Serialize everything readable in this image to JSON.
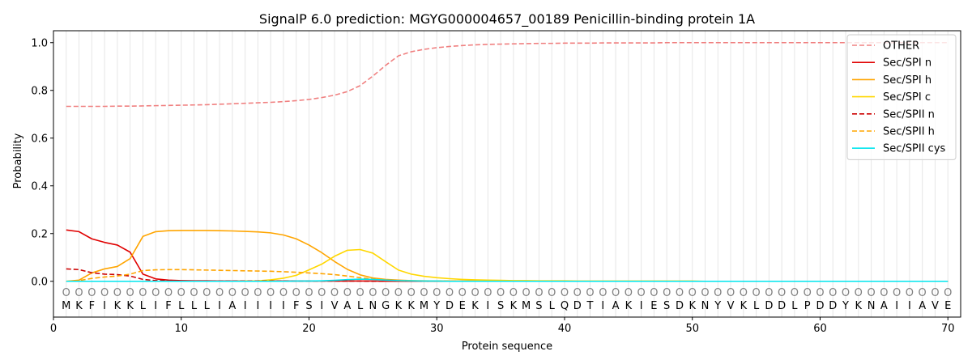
{
  "chart_data": {
    "type": "line",
    "title": "SignalP 6.0 prediction: MGYG000004657_00189 Penicillin-binding protein 1A",
    "xlabel": "Protein sequence",
    "ylabel": "Probability",
    "xlim": [
      0,
      71
    ],
    "ylim": [
      -0.15,
      1.05
    ],
    "xticks": [
      0,
      10,
      20,
      30,
      40,
      50,
      60,
      70
    ],
    "yticks": [
      0.0,
      0.2,
      0.4,
      0.6,
      0.8,
      1.0
    ],
    "grid": "vertical lines at each residue",
    "legend_position": "top-right",
    "sequence": [
      "M",
      "K",
      "F",
      "I",
      "K",
      "K",
      "L",
      "I",
      "F",
      "L",
      "L",
      "L",
      "I",
      "A",
      "I",
      "I",
      "I",
      "I",
      "F",
      "S",
      "I",
      "V",
      "A",
      "L",
      "N",
      "G",
      "K",
      "K",
      "M",
      "Y",
      "D",
      "E",
      "K",
      "I",
      "S",
      "K",
      "M",
      "S",
      "L",
      "Q",
      "D",
      "T",
      "I",
      "A",
      "K",
      "I",
      "E",
      "S",
      "D",
      "K",
      "N",
      "Y",
      "V",
      "K",
      "L",
      "D",
      "D",
      "L",
      "P",
      "D",
      "D",
      "Y",
      "K",
      "N",
      "A",
      "I",
      "I",
      "A",
      "V",
      "E"
    ],
    "sequence_marker": "O",
    "x": [
      1,
      2,
      3,
      4,
      5,
      6,
      7,
      8,
      9,
      10,
      11,
      12,
      13,
      14,
      15,
      16,
      17,
      18,
      19,
      20,
      21,
      22,
      23,
      24,
      25,
      26,
      27,
      28,
      29,
      30,
      31,
      32,
      33,
      34,
      35,
      36,
      37,
      38,
      39,
      40,
      41,
      42,
      43,
      44,
      45,
      46,
      47,
      48,
      49,
      50,
      51,
      52,
      53,
      54,
      55,
      56,
      57,
      58,
      59,
      60,
      61,
      62,
      63,
      64,
      65,
      66,
      67,
      68,
      69,
      70
    ],
    "series": [
      {
        "name": "OTHER",
        "color": "#f08080",
        "dash": "dashed",
        "values": [
          0.733,
          0.733,
          0.733,
          0.733,
          0.734,
          0.734,
          0.735,
          0.736,
          0.737,
          0.738,
          0.739,
          0.74,
          0.742,
          0.744,
          0.746,
          0.748,
          0.75,
          0.753,
          0.757,
          0.762,
          0.77,
          0.78,
          0.795,
          0.82,
          0.86,
          0.905,
          0.945,
          0.962,
          0.972,
          0.979,
          0.984,
          0.988,
          0.991,
          0.993,
          0.994,
          0.995,
          0.996,
          0.997,
          0.997,
          0.998,
          0.998,
          0.998,
          0.999,
          0.999,
          0.999,
          0.999,
          0.999,
          1.0,
          1.0,
          1.0,
          1.0,
          1.0,
          1.0,
          1.0,
          1.0,
          1.0,
          1.0,
          1.0,
          1.0,
          1.0,
          1.0,
          1.0,
          1.0,
          1.0,
          1.0,
          1.0,
          1.0,
          1.0,
          1.0,
          1.0
        ]
      },
      {
        "name": "Sec/SPI n",
        "color": "#e00000",
        "dash": "solid",
        "values": [
          0.215,
          0.208,
          0.178,
          0.163,
          0.152,
          0.122,
          0.03,
          0.01,
          0.005,
          0.003,
          0.002,
          0.002,
          0.001,
          0.001,
          0.001,
          0.001,
          0.001,
          0.001,
          0.001,
          0.001,
          0.001,
          0.001,
          0.001,
          0.001,
          0.001,
          0.0,
          0.0,
          0.0,
          0.0,
          0.0,
          0.0,
          0.0,
          0.0,
          0.0,
          0.0,
          0.0,
          0.0,
          0.0,
          0.0,
          0.0,
          0.0,
          0.0,
          0.0,
          0.0,
          0.0,
          0.0,
          0.0,
          0.0,
          0.0,
          0.0,
          0.0,
          0.0,
          0.0,
          0.0,
          0.0,
          0.0,
          0.0,
          0.0,
          0.0,
          0.0,
          0.0,
          0.0,
          0.0,
          0.0,
          0.0,
          0.0,
          0.0,
          0.0,
          0.0,
          0.0
        ]
      },
      {
        "name": "Sec/SPI h",
        "color": "#ffa500",
        "dash": "solid",
        "values": [
          0.0,
          0.005,
          0.035,
          0.052,
          0.062,
          0.095,
          0.188,
          0.208,
          0.212,
          0.213,
          0.213,
          0.213,
          0.212,
          0.211,
          0.209,
          0.207,
          0.203,
          0.194,
          0.178,
          0.152,
          0.12,
          0.083,
          0.05,
          0.027,
          0.014,
          0.008,
          0.005,
          0.003,
          0.002,
          0.001,
          0.001,
          0.001,
          0.001,
          0.0,
          0.0,
          0.0,
          0.0,
          0.0,
          0.0,
          0.0,
          0.0,
          0.0,
          0.0,
          0.0,
          0.0,
          0.0,
          0.0,
          0.0,
          0.0,
          0.0,
          0.0,
          0.0,
          0.0,
          0.0,
          0.0,
          0.0,
          0.0,
          0.0,
          0.0,
          0.0,
          0.0,
          0.0,
          0.0,
          0.0,
          0.0,
          0.0,
          0.0,
          0.0,
          0.0,
          0.0
        ]
      },
      {
        "name": "Sec/SPI c",
        "color": "#ffd700",
        "dash": "solid",
        "values": [
          0.0,
          0.0,
          0.0,
          0.0,
          0.0,
          0.0,
          0.0,
          0.0,
          0.0,
          0.0,
          0.0,
          0.0,
          0.0,
          0.0,
          0.001,
          0.002,
          0.006,
          0.013,
          0.025,
          0.048,
          0.072,
          0.105,
          0.13,
          0.133,
          0.118,
          0.082,
          0.047,
          0.03,
          0.021,
          0.015,
          0.011,
          0.008,
          0.006,
          0.005,
          0.004,
          0.003,
          0.003,
          0.002,
          0.002,
          0.002,
          0.001,
          0.001,
          0.001,
          0.001,
          0.001,
          0.001,
          0.001,
          0.001,
          0.001,
          0.001,
          0.0,
          0.0,
          0.0,
          0.0,
          0.0,
          0.0,
          0.0,
          0.0,
          0.0,
          0.0,
          0.0,
          0.0,
          0.0,
          0.0,
          0.0,
          0.0,
          0.0,
          0.0,
          0.0,
          0.0
        ]
      },
      {
        "name": "Sec/SPII n",
        "color": "#cc0000",
        "dash": "dashed",
        "values": [
          0.052,
          0.049,
          0.036,
          0.03,
          0.028,
          0.022,
          0.008,
          0.003,
          0.002,
          0.001,
          0.001,
          0.001,
          0.001,
          0.001,
          0.001,
          0.001,
          0.001,
          0.001,
          0.001,
          0.001,
          0.001,
          0.001,
          0.001,
          0.001,
          0.0,
          0.0,
          0.0,
          0.0,
          0.0,
          0.0,
          0.0,
          0.0,
          0.0,
          0.0,
          0.0,
          0.0,
          0.0,
          0.0,
          0.0,
          0.0,
          0.0,
          0.0,
          0.0,
          0.0,
          0.0,
          0.0,
          0.0,
          0.0,
          0.0,
          0.0,
          0.0,
          0.0,
          0.0,
          0.0,
          0.0,
          0.0,
          0.0,
          0.0,
          0.0,
          0.0,
          0.0,
          0.0,
          0.0,
          0.0,
          0.0,
          0.0,
          0.0,
          0.0,
          0.0,
          0.0
        ]
      },
      {
        "name": "Sec/SPII h",
        "color": "#ffa500",
        "dash": "dashed",
        "values": [
          0.0,
          0.003,
          0.012,
          0.018,
          0.022,
          0.03,
          0.045,
          0.048,
          0.049,
          0.049,
          0.048,
          0.047,
          0.046,
          0.045,
          0.044,
          0.043,
          0.042,
          0.04,
          0.038,
          0.035,
          0.032,
          0.028,
          0.022,
          0.015,
          0.009,
          0.005,
          0.003,
          0.002,
          0.001,
          0.001,
          0.001,
          0.0,
          0.0,
          0.0,
          0.0,
          0.0,
          0.0,
          0.0,
          0.0,
          0.0,
          0.0,
          0.0,
          0.0,
          0.0,
          0.0,
          0.0,
          0.0,
          0.0,
          0.0,
          0.0,
          0.0,
          0.0,
          0.0,
          0.0,
          0.0,
          0.0,
          0.0,
          0.0,
          0.0,
          0.0,
          0.0,
          0.0,
          0.0,
          0.0,
          0.0,
          0.0,
          0.0,
          0.0,
          0.0,
          0.0
        ]
      },
      {
        "name": "Sec/SPII cys",
        "color": "#00e5ee",
        "dash": "solid",
        "values": [
          0.0,
          0.0,
          0.0,
          0.0,
          0.0,
          0.0,
          0.0,
          0.0,
          0.0,
          0.0,
          0.0,
          0.0,
          0.0,
          0.0,
          0.0,
          0.0,
          0.0,
          0.0,
          0.001,
          0.001,
          0.002,
          0.004,
          0.007,
          0.009,
          0.008,
          0.005,
          0.003,
          0.002,
          0.001,
          0.001,
          0.0,
          0.0,
          0.0,
          0.0,
          0.0,
          0.0,
          0.0,
          0.0,
          0.0,
          0.0,
          0.0,
          0.0,
          0.0,
          0.0,
          0.0,
          0.0,
          0.0,
          0.0,
          0.0,
          0.0,
          0.0,
          0.0,
          0.0,
          0.0,
          0.0,
          0.0,
          0.0,
          0.0,
          0.0,
          0.0,
          0.0,
          0.0,
          0.0,
          0.0,
          0.0,
          0.0,
          0.0,
          0.0,
          0.0,
          0.0
        ]
      }
    ]
  }
}
